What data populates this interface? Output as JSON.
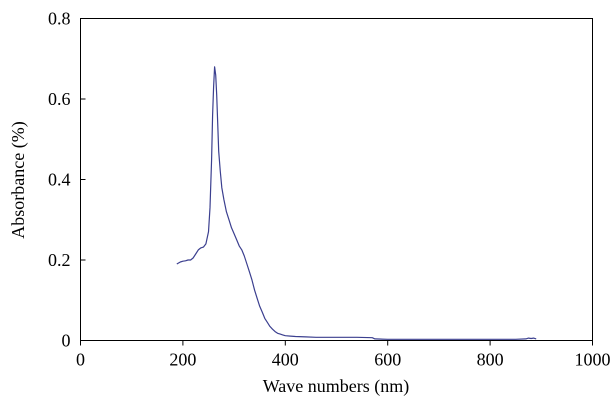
{
  "chart_data": {
    "type": "line",
    "title": "",
    "xlabel": "Wave numbers (nm)",
    "ylabel": "Absorbance (%)",
    "xlim": [
      0,
      1000
    ],
    "ylim": [
      0,
      0.8
    ],
    "x_ticks": [
      0,
      200,
      400,
      600,
      800,
      1000
    ],
    "x_tick_labels": [
      "0",
      "200",
      "400",
      "600",
      "800",
      "1000"
    ],
    "y_ticks": [
      0,
      0.2,
      0.4,
      0.6,
      0.8
    ],
    "y_tick_labels": [
      "0",
      "0.2",
      "0.4",
      "0.6",
      "0.8"
    ],
    "grid": false,
    "legend": "none",
    "series": [
      {
        "color": "#3b3f8f",
        "x": [
          188,
          195,
          200,
          205,
          210,
          215,
          220,
          225,
          230,
          235,
          240,
          245,
          250,
          253,
          256,
          258,
          260,
          262,
          264,
          266,
          268,
          270,
          273,
          276,
          280,
          285,
          290,
          295,
          300,
          305,
          310,
          315,
          320,
          325,
          330,
          335,
          340,
          345,
          350,
          355,
          360,
          365,
          370,
          375,
          380,
          385,
          390,
          395,
          400,
          410,
          420,
          440,
          460,
          500,
          540,
          570,
          575,
          600,
          650,
          700,
          750,
          800,
          850,
          870,
          875,
          880,
          885,
          890
        ],
        "y": [
          0.19,
          0.195,
          0.197,
          0.198,
          0.2,
          0.2,
          0.205,
          0.215,
          0.225,
          0.23,
          0.232,
          0.24,
          0.27,
          0.33,
          0.45,
          0.56,
          0.63,
          0.68,
          0.66,
          0.61,
          0.54,
          0.47,
          0.42,
          0.38,
          0.35,
          0.32,
          0.3,
          0.28,
          0.265,
          0.25,
          0.235,
          0.225,
          0.21,
          0.19,
          0.17,
          0.15,
          0.125,
          0.105,
          0.085,
          0.07,
          0.055,
          0.045,
          0.035,
          0.028,
          0.022,
          0.018,
          0.016,
          0.014,
          0.012,
          0.011,
          0.01,
          0.009,
          0.008,
          0.008,
          0.008,
          0.007,
          0.004,
          0.003,
          0.003,
          0.003,
          0.003,
          0.003,
          0.003,
          0.004,
          0.006,
          0.005,
          0.006,
          0.004
        ]
      }
    ]
  }
}
